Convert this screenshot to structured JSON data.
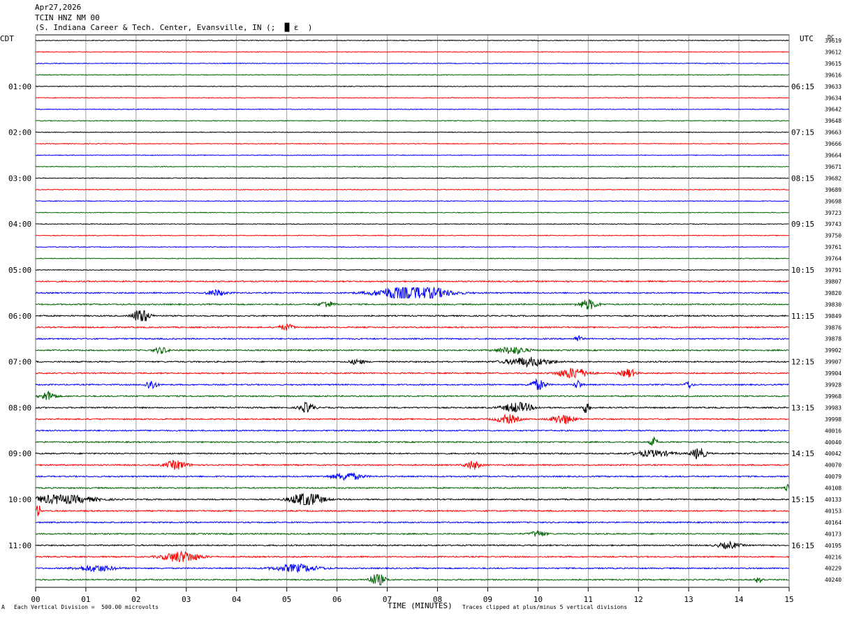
{
  "header": {
    "date": "Apr27,2026",
    "station": "TCIN HNZ NM 00",
    "location": "(S. Indiana Career & Tech. Center, Evansville, IN (;  █ ε  )"
  },
  "left_label": "CDT",
  "right_label": "UTC",
  "dc_label": "DC",
  "footer": {
    "scale_note": "Each Vertical Division =  500.00 microvolts",
    "xlabel": "TIME (MINUTES)",
    "clip_note": "Traces clipped at plus/minus 5 vertical divisions",
    "corner_mark": "A"
  },
  "colors": [
    "#000000",
    "#ff0000",
    "#0000ff",
    "#006400"
  ],
  "chart_data": {
    "type": "line",
    "title": "TCIN HNZ NM 00",
    "xlabel": "TIME (MINUTES)",
    "xlim": [
      0,
      15
    ],
    "x_ticks": [
      "00",
      "01",
      "02",
      "03",
      "04",
      "05",
      "06",
      "07",
      "08",
      "09",
      "10",
      "11",
      "12",
      "13",
      "14",
      "15"
    ],
    "left_times": [
      {
        "row": 4,
        "label": "01:00"
      },
      {
        "row": 8,
        "label": "02:00"
      },
      {
        "row": 12,
        "label": "03:00"
      },
      {
        "row": 16,
        "label": "04:00"
      },
      {
        "row": 20,
        "label": "05:00"
      },
      {
        "row": 24,
        "label": "06:00"
      },
      {
        "row": 28,
        "label": "07:00"
      },
      {
        "row": 32,
        "label": "08:00"
      },
      {
        "row": 36,
        "label": "09:00"
      },
      {
        "row": 40,
        "label": "10:00"
      },
      {
        "row": 44,
        "label": "11:00"
      }
    ],
    "right_times": [
      {
        "row": 4,
        "label": "06:15"
      },
      {
        "row": 8,
        "label": "07:15"
      },
      {
        "row": 12,
        "label": "08:15"
      },
      {
        "row": 16,
        "label": "09:15"
      },
      {
        "row": 20,
        "label": "10:15"
      },
      {
        "row": 24,
        "label": "11:15"
      },
      {
        "row": 28,
        "label": "12:15"
      },
      {
        "row": 32,
        "label": "13:15"
      },
      {
        "row": 36,
        "label": "14:15"
      },
      {
        "row": 40,
        "label": "15:15"
      },
      {
        "row": 44,
        "label": "16:15"
      }
    ],
    "dc_values": [
      "39619",
      "39612",
      "39615",
      "39616",
      "39633",
      "39634",
      "39642",
      "39648",
      "39663",
      "39666",
      "39664",
      "39671",
      "39682",
      "39689",
      "39698",
      "39723",
      "39743",
      "39750",
      "39761",
      "39764",
      "39791",
      "39807",
      "39820",
      "39830",
      "39849",
      "39876",
      "39878",
      "39902",
      "39907",
      "39904",
      "39928",
      "39968",
      "39983",
      "39998",
      "40016",
      "40040",
      "40042",
      "40070",
      "40079",
      "40108",
      "40133",
      "40153",
      "40164",
      "40173",
      "40195",
      "40216",
      "40229",
      "40240"
    ],
    "events": [
      {
        "row": 22,
        "x": 3.6,
        "amp": 0.5,
        "width": 0.25
      },
      {
        "row": 22,
        "x": 7.5,
        "amp": 1.4,
        "width": 0.9
      },
      {
        "row": 23,
        "x": 5.8,
        "amp": 0.5,
        "width": 0.2
      },
      {
        "row": 23,
        "x": 11.0,
        "amp": 0.8,
        "width": 0.25
      },
      {
        "row": 24,
        "x": 2.1,
        "amp": 1.5,
        "width": 0.2
      },
      {
        "row": 25,
        "x": 5.0,
        "amp": 0.5,
        "width": 0.2
      },
      {
        "row": 26,
        "x": 10.8,
        "amp": 0.5,
        "width": 0.1
      },
      {
        "row": 27,
        "x": 2.5,
        "amp": 0.5,
        "width": 0.2
      },
      {
        "row": 27,
        "x": 9.5,
        "amp": 0.6,
        "width": 0.4
      },
      {
        "row": 28,
        "x": 9.8,
        "amp": 0.7,
        "width": 0.6
      },
      {
        "row": 28,
        "x": 6.4,
        "amp": 0.4,
        "width": 0.2
      },
      {
        "row": 29,
        "x": 10.7,
        "amp": 0.9,
        "width": 0.4
      },
      {
        "row": 29,
        "x": 11.8,
        "amp": 0.7,
        "width": 0.2
      },
      {
        "row": 30,
        "x": 10.0,
        "amp": 0.9,
        "width": 0.2
      },
      {
        "row": 30,
        "x": 2.3,
        "amp": 0.8,
        "width": 0.15
      },
      {
        "row": 30,
        "x": 10.8,
        "amp": 0.7,
        "width": 0.1
      },
      {
        "row": 30,
        "x": 13.0,
        "amp": 0.6,
        "width": 0.1
      },
      {
        "row": 31,
        "x": 0.25,
        "amp": 0.8,
        "width": 0.2
      },
      {
        "row": 32,
        "x": 5.4,
        "amp": 0.8,
        "width": 0.2
      },
      {
        "row": 32,
        "x": 9.6,
        "amp": 0.8,
        "width": 0.4
      },
      {
        "row": 32,
        "x": 10.95,
        "amp": 0.9,
        "width": 0.1
      },
      {
        "row": 33,
        "x": 9.4,
        "amp": 0.7,
        "width": 0.3
      },
      {
        "row": 33,
        "x": 10.5,
        "amp": 0.8,
        "width": 0.3
      },
      {
        "row": 35,
        "x": 12.3,
        "amp": 0.7,
        "width": 0.1
      },
      {
        "row": 36,
        "x": 13.2,
        "amp": 0.9,
        "width": 0.2
      },
      {
        "row": 36,
        "x": 12.3,
        "amp": 0.5,
        "width": 0.5
      },
      {
        "row": 37,
        "x": 2.8,
        "amp": 0.7,
        "width": 0.3
      },
      {
        "row": 37,
        "x": 8.7,
        "amp": 0.7,
        "width": 0.2
      },
      {
        "row": 38,
        "x": 6.2,
        "amp": 0.6,
        "width": 0.4
      },
      {
        "row": 39,
        "x": 15.0,
        "amp": 0.6,
        "width": 0.1
      },
      {
        "row": 40,
        "x": 5.4,
        "amp": 1.4,
        "width": 0.4
      },
      {
        "row": 40,
        "x": 0.5,
        "amp": 0.7,
        "width": 0.9
      },
      {
        "row": 41,
        "x": 0.05,
        "amp": 1.8,
        "width": 0.05
      },
      {
        "row": 43,
        "x": 10.0,
        "amp": 0.5,
        "width": 0.2
      },
      {
        "row": 44,
        "x": 13.8,
        "amp": 0.5,
        "width": 0.3
      },
      {
        "row": 45,
        "x": 2.9,
        "amp": 0.9,
        "width": 0.5
      },
      {
        "row": 46,
        "x": 5.2,
        "amp": 0.6,
        "width": 0.6
      },
      {
        "row": 46,
        "x": 1.2,
        "amp": 0.5,
        "width": 0.5
      },
      {
        "row": 47,
        "x": 6.8,
        "amp": 1.1,
        "width": 0.2
      },
      {
        "row": 47,
        "x": 14.4,
        "amp": 0.6,
        "width": 0.1
      }
    ],
    "grid": true
  }
}
